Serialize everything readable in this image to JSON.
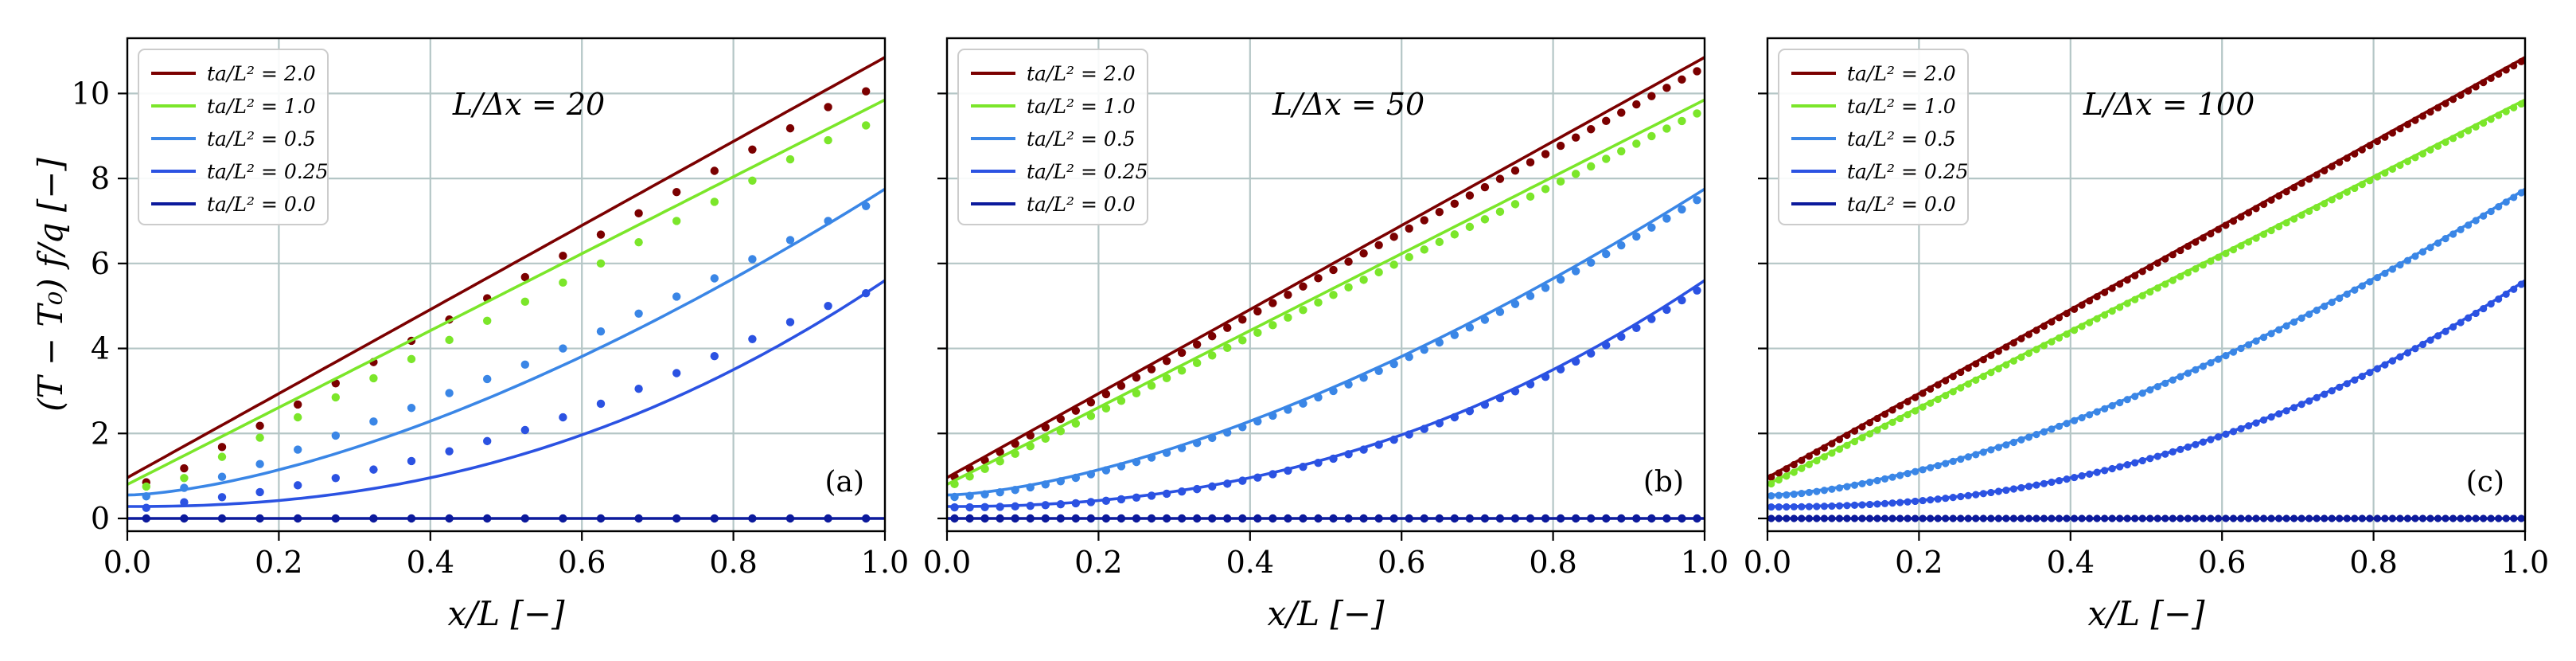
{
  "colors": {
    "2.0": "#7b0000",
    "1.0": "#7be62a",
    "0.5": "#3a86e6",
    "0.25": "#2b52e2",
    "0.0": "#0c1a9c",
    "grid": "#b4c6c6",
    "axis": "#000000"
  },
  "chart_data": [
    {
      "type": "line",
      "panel_label": "(a)",
      "annotation": "L/Δx = 20",
      "xlabel": "x/L [−]",
      "ylabel": "(T − T₀) f/q [−]",
      "xlim": [
        0,
        1.0
      ],
      "ylim": [
        -0.3,
        11.3
      ],
      "xticks": [
        "0.0",
        "0.2",
        "0.4",
        "0.6",
        "0.8",
        "1.0"
      ],
      "yticks": [
        "0",
        "2",
        "4",
        "6",
        "8",
        "10"
      ],
      "grid": true,
      "legend_position": "top-left",
      "legend": [
        "ta/L² = 2.0",
        "ta/L² = 1.0",
        "ta/L² = 0.5",
        "ta/L² = 0.25",
        "ta/L² = 0.0"
      ],
      "n_points": 20,
      "series": [
        {
          "name": "ta/L² = 2.0",
          "line_start": 0.96,
          "line_end": 10.85,
          "points": [
            0.85,
            1.18,
            1.68,
            2.18,
            2.68,
            3.18,
            3.68,
            4.18,
            4.68,
            5.18,
            5.68,
            6.18,
            6.68,
            7.18,
            7.68,
            8.18,
            8.68,
            9.18,
            9.68,
            10.05
          ]
        },
        {
          "name": "ta/L² = 1.0",
          "line_start": 0.8,
          "line_end": 9.85,
          "points": [
            0.75,
            0.95,
            1.45,
            1.9,
            2.38,
            2.85,
            3.3,
            3.75,
            4.2,
            4.65,
            5.1,
            5.55,
            6.0,
            6.5,
            7.0,
            7.45,
            7.95,
            8.45,
            8.9,
            9.25
          ]
        },
        {
          "name": "ta/L² = 0.5",
          "line_start": 0.55,
          "line_end": 7.75,
          "points": [
            0.52,
            0.72,
            0.98,
            1.28,
            1.62,
            1.95,
            2.28,
            2.6,
            2.95,
            3.28,
            3.62,
            4.0,
            4.4,
            4.82,
            5.22,
            5.65,
            6.1,
            6.55,
            7.0,
            7.35
          ]
        },
        {
          "name": "ta/L² = 0.25",
          "line_start": 0.28,
          "line_end": 5.6,
          "points": [
            0.25,
            0.38,
            0.5,
            0.62,
            0.78,
            0.95,
            1.15,
            1.35,
            1.58,
            1.82,
            2.08,
            2.38,
            2.7,
            3.05,
            3.42,
            3.82,
            4.22,
            4.62,
            5.0,
            5.3
          ]
        },
        {
          "name": "ta/L² = 0.0",
          "line_start": 0.0,
          "line_end": 0.0,
          "points": [
            0,
            0,
            0,
            0,
            0,
            0,
            0,
            0,
            0,
            0,
            0,
            0,
            0,
            0,
            0,
            0,
            0,
            0,
            0,
            0
          ]
        }
      ]
    },
    {
      "type": "line",
      "panel_label": "(b)",
      "annotation": "L/Δx = 50",
      "xlabel": "x/L [−]",
      "ylabel": "",
      "xlim": [
        0,
        1.0
      ],
      "ylim": [
        -0.3,
        11.3
      ],
      "xticks": [
        "0.0",
        "0.2",
        "0.4",
        "0.6",
        "0.8",
        "1.0"
      ],
      "yticks": [
        "0",
        "2",
        "4",
        "6",
        "8",
        "10"
      ],
      "grid": true,
      "legend_position": "top-left",
      "legend": [
        "ta/L² = 2.0",
        "ta/L² = 1.0",
        "ta/L² = 0.5",
        "ta/L² = 0.25",
        "ta/L² = 0.0"
      ],
      "n_points": 50,
      "series": [
        {
          "name": "ta/L² = 2.0",
          "line_start": 0.96,
          "line_end": 10.85,
          "point_start": 0.88,
          "point_end": 10.62
        },
        {
          "name": "ta/L² = 1.0",
          "line_start": 0.8,
          "line_end": 9.85,
          "point_start": 0.72,
          "point_end": 9.62
        },
        {
          "name": "ta/L² = 0.5",
          "line_start": 0.55,
          "line_end": 7.75,
          "point_start": 0.5,
          "point_end": 7.6
        },
        {
          "name": "ta/L² = 0.25",
          "line_start": 0.28,
          "line_end": 5.6,
          "point_start": 0.26,
          "point_end": 5.48
        },
        {
          "name": "ta/L² = 0.0",
          "line_start": 0.0,
          "line_end": 0.0,
          "point_start": 0.0,
          "point_end": 0.0
        }
      ]
    },
    {
      "type": "line",
      "panel_label": "(c)",
      "annotation": "L/Δx = 100",
      "xlabel": "x/L [−]",
      "ylabel": "",
      "xlim": [
        0,
        1.0
      ],
      "ylim": [
        -0.3,
        11.3
      ],
      "xticks": [
        "0.0",
        "0.2",
        "0.4",
        "0.6",
        "0.8",
        "1.0"
      ],
      "yticks": [
        "0",
        "2",
        "4",
        "6",
        "8",
        "10"
      ],
      "grid": true,
      "legend_position": "top-left",
      "legend": [
        "ta/L² = 2.0",
        "ta/L² = 1.0",
        "ta/L² = 0.5",
        "ta/L² = 0.25",
        "ta/L² = 0.0"
      ],
      "n_points": 100,
      "series": [
        {
          "name": "ta/L² = 2.0",
          "line_start": 0.96,
          "line_end": 10.85,
          "point_start": 0.92,
          "point_end": 10.8
        },
        {
          "name": "ta/L² = 1.0",
          "line_start": 0.8,
          "line_end": 9.85,
          "point_start": 0.77,
          "point_end": 9.8
        },
        {
          "name": "ta/L² = 0.5",
          "line_start": 0.55,
          "line_end": 7.75,
          "point_start": 0.53,
          "point_end": 7.72
        },
        {
          "name": "ta/L² = 0.25",
          "line_start": 0.28,
          "line_end": 5.6,
          "point_start": 0.27,
          "point_end": 5.57
        },
        {
          "name": "ta/L² = 0.0",
          "line_start": 0.0,
          "line_end": 0.0,
          "point_start": 0.0,
          "point_end": 0.0
        }
      ]
    }
  ]
}
